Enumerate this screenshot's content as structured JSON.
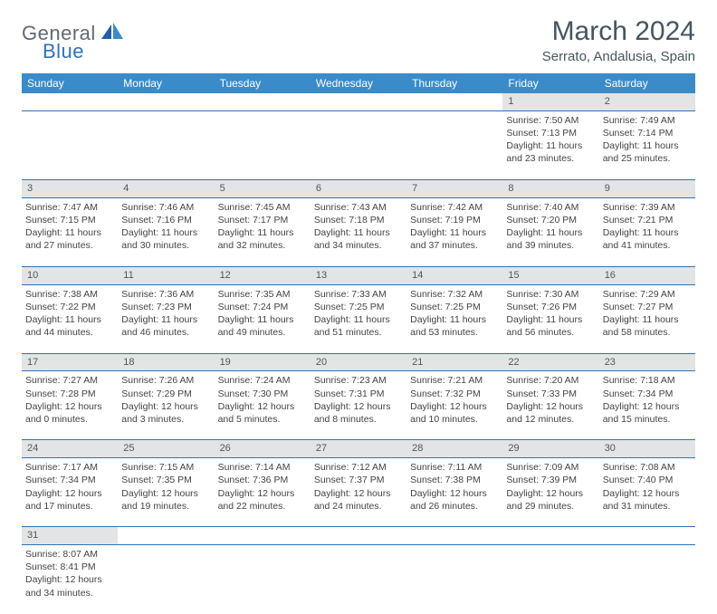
{
  "logo": {
    "part1": "General",
    "part2": "Blue"
  },
  "title": "March 2024",
  "location": "Serrato, Andalusia, Spain",
  "colors": {
    "header_bg": "#3b8bc9",
    "header_text": "#ffffff",
    "daynum_bg": "#e3e4e5",
    "row_border": "#2f72b8",
    "logo_gray": "#5f6a72",
    "logo_blue": "#2f72b8",
    "title_color": "#455560"
  },
  "weekdays": [
    "Sunday",
    "Monday",
    "Tuesday",
    "Wednesday",
    "Thursday",
    "Friday",
    "Saturday"
  ],
  "weeks": [
    {
      "days": [
        null,
        null,
        null,
        null,
        null,
        {
          "n": "1",
          "sunrise": "Sunrise: 7:50 AM",
          "sunset": "Sunset: 7:13 PM",
          "daylight1": "Daylight: 11 hours",
          "daylight2": "and 23 minutes."
        },
        {
          "n": "2",
          "sunrise": "Sunrise: 7:49 AM",
          "sunset": "Sunset: 7:14 PM",
          "daylight1": "Daylight: 11 hours",
          "daylight2": "and 25 minutes."
        }
      ]
    },
    {
      "days": [
        {
          "n": "3",
          "sunrise": "Sunrise: 7:47 AM",
          "sunset": "Sunset: 7:15 PM",
          "daylight1": "Daylight: 11 hours",
          "daylight2": "and 27 minutes."
        },
        {
          "n": "4",
          "sunrise": "Sunrise: 7:46 AM",
          "sunset": "Sunset: 7:16 PM",
          "daylight1": "Daylight: 11 hours",
          "daylight2": "and 30 minutes."
        },
        {
          "n": "5",
          "sunrise": "Sunrise: 7:45 AM",
          "sunset": "Sunset: 7:17 PM",
          "daylight1": "Daylight: 11 hours",
          "daylight2": "and 32 minutes."
        },
        {
          "n": "6",
          "sunrise": "Sunrise: 7:43 AM",
          "sunset": "Sunset: 7:18 PM",
          "daylight1": "Daylight: 11 hours",
          "daylight2": "and 34 minutes."
        },
        {
          "n": "7",
          "sunrise": "Sunrise: 7:42 AM",
          "sunset": "Sunset: 7:19 PM",
          "daylight1": "Daylight: 11 hours",
          "daylight2": "and 37 minutes."
        },
        {
          "n": "8",
          "sunrise": "Sunrise: 7:40 AM",
          "sunset": "Sunset: 7:20 PM",
          "daylight1": "Daylight: 11 hours",
          "daylight2": "and 39 minutes."
        },
        {
          "n": "9",
          "sunrise": "Sunrise: 7:39 AM",
          "sunset": "Sunset: 7:21 PM",
          "daylight1": "Daylight: 11 hours",
          "daylight2": "and 41 minutes."
        }
      ]
    },
    {
      "days": [
        {
          "n": "10",
          "sunrise": "Sunrise: 7:38 AM",
          "sunset": "Sunset: 7:22 PM",
          "daylight1": "Daylight: 11 hours",
          "daylight2": "and 44 minutes."
        },
        {
          "n": "11",
          "sunrise": "Sunrise: 7:36 AM",
          "sunset": "Sunset: 7:23 PM",
          "daylight1": "Daylight: 11 hours",
          "daylight2": "and 46 minutes."
        },
        {
          "n": "12",
          "sunrise": "Sunrise: 7:35 AM",
          "sunset": "Sunset: 7:24 PM",
          "daylight1": "Daylight: 11 hours",
          "daylight2": "and 49 minutes."
        },
        {
          "n": "13",
          "sunrise": "Sunrise: 7:33 AM",
          "sunset": "Sunset: 7:25 PM",
          "daylight1": "Daylight: 11 hours",
          "daylight2": "and 51 minutes."
        },
        {
          "n": "14",
          "sunrise": "Sunrise: 7:32 AM",
          "sunset": "Sunset: 7:25 PM",
          "daylight1": "Daylight: 11 hours",
          "daylight2": "and 53 minutes."
        },
        {
          "n": "15",
          "sunrise": "Sunrise: 7:30 AM",
          "sunset": "Sunset: 7:26 PM",
          "daylight1": "Daylight: 11 hours",
          "daylight2": "and 56 minutes."
        },
        {
          "n": "16",
          "sunrise": "Sunrise: 7:29 AM",
          "sunset": "Sunset: 7:27 PM",
          "daylight1": "Daylight: 11 hours",
          "daylight2": "and 58 minutes."
        }
      ]
    },
    {
      "days": [
        {
          "n": "17",
          "sunrise": "Sunrise: 7:27 AM",
          "sunset": "Sunset: 7:28 PM",
          "daylight1": "Daylight: 12 hours",
          "daylight2": "and 0 minutes."
        },
        {
          "n": "18",
          "sunrise": "Sunrise: 7:26 AM",
          "sunset": "Sunset: 7:29 PM",
          "daylight1": "Daylight: 12 hours",
          "daylight2": "and 3 minutes."
        },
        {
          "n": "19",
          "sunrise": "Sunrise: 7:24 AM",
          "sunset": "Sunset: 7:30 PM",
          "daylight1": "Daylight: 12 hours",
          "daylight2": "and 5 minutes."
        },
        {
          "n": "20",
          "sunrise": "Sunrise: 7:23 AM",
          "sunset": "Sunset: 7:31 PM",
          "daylight1": "Daylight: 12 hours",
          "daylight2": "and 8 minutes."
        },
        {
          "n": "21",
          "sunrise": "Sunrise: 7:21 AM",
          "sunset": "Sunset: 7:32 PM",
          "daylight1": "Daylight: 12 hours",
          "daylight2": "and 10 minutes."
        },
        {
          "n": "22",
          "sunrise": "Sunrise: 7:20 AM",
          "sunset": "Sunset: 7:33 PM",
          "daylight1": "Daylight: 12 hours",
          "daylight2": "and 12 minutes."
        },
        {
          "n": "23",
          "sunrise": "Sunrise: 7:18 AM",
          "sunset": "Sunset: 7:34 PM",
          "daylight1": "Daylight: 12 hours",
          "daylight2": "and 15 minutes."
        }
      ]
    },
    {
      "days": [
        {
          "n": "24",
          "sunrise": "Sunrise: 7:17 AM",
          "sunset": "Sunset: 7:34 PM",
          "daylight1": "Daylight: 12 hours",
          "daylight2": "and 17 minutes."
        },
        {
          "n": "25",
          "sunrise": "Sunrise: 7:15 AM",
          "sunset": "Sunset: 7:35 PM",
          "daylight1": "Daylight: 12 hours",
          "daylight2": "and 19 minutes."
        },
        {
          "n": "26",
          "sunrise": "Sunrise: 7:14 AM",
          "sunset": "Sunset: 7:36 PM",
          "daylight1": "Daylight: 12 hours",
          "daylight2": "and 22 minutes."
        },
        {
          "n": "27",
          "sunrise": "Sunrise: 7:12 AM",
          "sunset": "Sunset: 7:37 PM",
          "daylight1": "Daylight: 12 hours",
          "daylight2": "and 24 minutes."
        },
        {
          "n": "28",
          "sunrise": "Sunrise: 7:11 AM",
          "sunset": "Sunset: 7:38 PM",
          "daylight1": "Daylight: 12 hours",
          "daylight2": "and 26 minutes."
        },
        {
          "n": "29",
          "sunrise": "Sunrise: 7:09 AM",
          "sunset": "Sunset: 7:39 PM",
          "daylight1": "Daylight: 12 hours",
          "daylight2": "and 29 minutes."
        },
        {
          "n": "30",
          "sunrise": "Sunrise: 7:08 AM",
          "sunset": "Sunset: 7:40 PM",
          "daylight1": "Daylight: 12 hours",
          "daylight2": "and 31 minutes."
        }
      ]
    },
    {
      "days": [
        {
          "n": "31",
          "sunrise": "Sunrise: 8:07 AM",
          "sunset": "Sunset: 8:41 PM",
          "daylight1": "Daylight: 12 hours",
          "daylight2": "and 34 minutes."
        },
        null,
        null,
        null,
        null,
        null,
        null
      ]
    }
  ]
}
